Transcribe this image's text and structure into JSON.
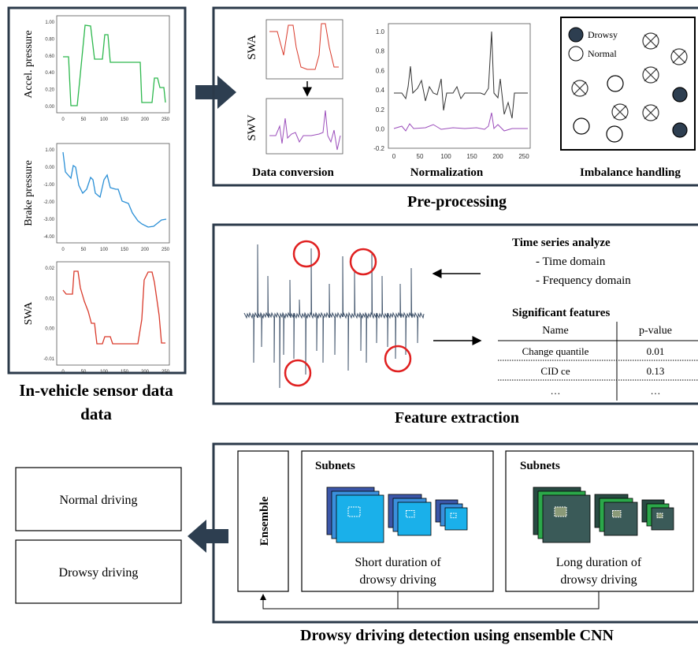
{
  "sensor": {
    "title_lines": [
      "In-vehicle sensor data",
      "data"
    ],
    "charts": [
      {
        "ylabel": "Accel. pressure",
        "yticks": [
          "1.00",
          "0.80",
          "0.60",
          "0.40",
          "0.20",
          "0.00"
        ],
        "xticks": [
          "0",
          "50",
          "100",
          "150",
          "200",
          "250"
        ]
      },
      {
        "ylabel": "Brake pressure",
        "yticks": [
          "1.00",
          "0.00",
          "-1.00",
          "-2.00",
          "-3.00",
          "-4.00"
        ],
        "xticks": [
          "0",
          "50",
          "100",
          "150",
          "200",
          "250"
        ]
      },
      {
        "ylabel": "SWA",
        "yticks": [
          "0.02",
          "0.01",
          "0.00",
          "-0.01"
        ],
        "xticks": [
          "0",
          "50",
          "100",
          "150",
          "200",
          "250"
        ]
      }
    ]
  },
  "preprocessing": {
    "title": "Pre-processing",
    "data_conversion": {
      "label": "Data conversion",
      "swa": "SWA",
      "swv": "SWV"
    },
    "normalization": {
      "label": "Normalization",
      "yticks": [
        "1.0",
        "0.8",
        "0.6",
        "0.4",
        "0.2",
        "0.0",
        "-0.2"
      ],
      "xticks": [
        "0",
        "50",
        "100",
        "150",
        "200",
        "250"
      ]
    },
    "imbalance": {
      "label": "Imbalance handling",
      "legend": [
        "Drowsy",
        "Normal"
      ]
    }
  },
  "feature_extraction": {
    "title": "Feature extraction",
    "analysis_title": "Time series analyze",
    "analysis_items": [
      "- Time domain",
      "- Frequency domain"
    ],
    "features_title": "Significant features",
    "table": {
      "header": [
        "Name",
        "p-value"
      ],
      "rows": [
        [
          "Change quantile",
          "0.01"
        ],
        [
          "CID ce",
          "0.13"
        ],
        [
          "…",
          "…"
        ]
      ]
    }
  },
  "detection": {
    "title": "Drowsy driving detection using ensemble CNN",
    "ensemble": "Ensemble",
    "subnets": [
      {
        "title": "Subnets",
        "caption": [
          "Short duration of",
          "drowsy driving"
        ]
      },
      {
        "title": "Subnets",
        "caption": [
          "Long duration of",
          "drowsy driving"
        ]
      }
    ],
    "outputs": [
      "Normal driving",
      "Drowsy driving"
    ]
  }
}
